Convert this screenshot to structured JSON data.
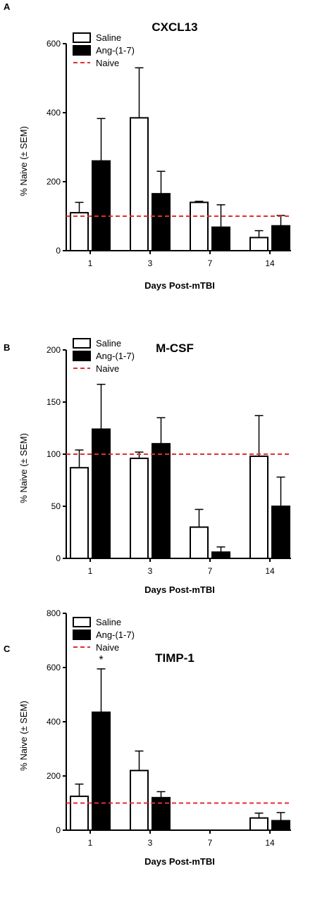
{
  "figure": {
    "x_axis_label": "Days Post-mTBI",
    "y_axis_label": "% Naive (± SEM)"
  },
  "legend": {
    "saline": "Saline",
    "ang": "Ang-(1-7)",
    "naive": "Naive"
  },
  "colors": {
    "saline_fill": "#ffffff",
    "ang_fill": "#000000",
    "naive_line": "#e03030",
    "axis": "#000000"
  },
  "chart_data": [
    {
      "panel": "A",
      "type": "bar",
      "title": "CXCL13",
      "xlabel": "Days Post-mTBI",
      "ylabel": "% Naive (± SEM)",
      "categories": [
        "1",
        "3",
        "7",
        "14"
      ],
      "ylim": [
        0,
        600
      ],
      "yticks": [
        "0",
        "200",
        "400",
        "600"
      ],
      "naive_reference": 100,
      "legend_position": "top-left",
      "series": [
        {
          "name": "Saline",
          "values": [
            110,
            385,
            140,
            38
          ],
          "errors": [
            30,
            145,
            3,
            20
          ]
        },
        {
          "name": "Ang-(1-7)",
          "values": [
            260,
            165,
            68,
            72
          ],
          "errors": [
            123,
            65,
            65,
            30
          ]
        }
      ],
      "annotations": []
    },
    {
      "panel": "B",
      "type": "bar",
      "title": "M-CSF",
      "xlabel": "Days Post-mTBI",
      "ylabel": "% Naive (± SEM)",
      "categories": [
        "1",
        "3",
        "7",
        "14"
      ],
      "ylim": [
        0,
        200
      ],
      "yticks": [
        "0",
        "50",
        "100",
        "150",
        "200"
      ],
      "naive_reference": 100,
      "legend_position": "top-left",
      "series": [
        {
          "name": "Saline",
          "values": [
            87,
            96,
            30,
            98
          ],
          "errors": [
            17,
            6,
            17,
            39
          ]
        },
        {
          "name": "Ang-(1-7)",
          "values": [
            124,
            110,
            6,
            50
          ],
          "errors": [
            43,
            25,
            5,
            28
          ]
        }
      ],
      "annotations": []
    },
    {
      "panel": "C",
      "type": "bar",
      "title": "TIMP-1",
      "xlabel": "Days Post-mTBI",
      "ylabel": "% Naive (± SEM)",
      "categories": [
        "1",
        "3",
        "7",
        "14"
      ],
      "ylim": [
        0,
        800
      ],
      "yticks": [
        "0",
        "200",
        "400",
        "600",
        "800"
      ],
      "naive_reference": 100,
      "legend_position": "top-left",
      "series": [
        {
          "name": "Saline",
          "values": [
            125,
            220,
            null,
            45
          ],
          "errors": [
            45,
            72,
            null,
            18
          ]
        },
        {
          "name": "Ang-(1-7)",
          "values": [
            435,
            120,
            null,
            35
          ],
          "errors": [
            160,
            22,
            null,
            30
          ]
        }
      ],
      "annotations": [
        {
          "text": "*",
          "category": "1",
          "series": "Ang-(1-7)"
        }
      ]
    }
  ]
}
